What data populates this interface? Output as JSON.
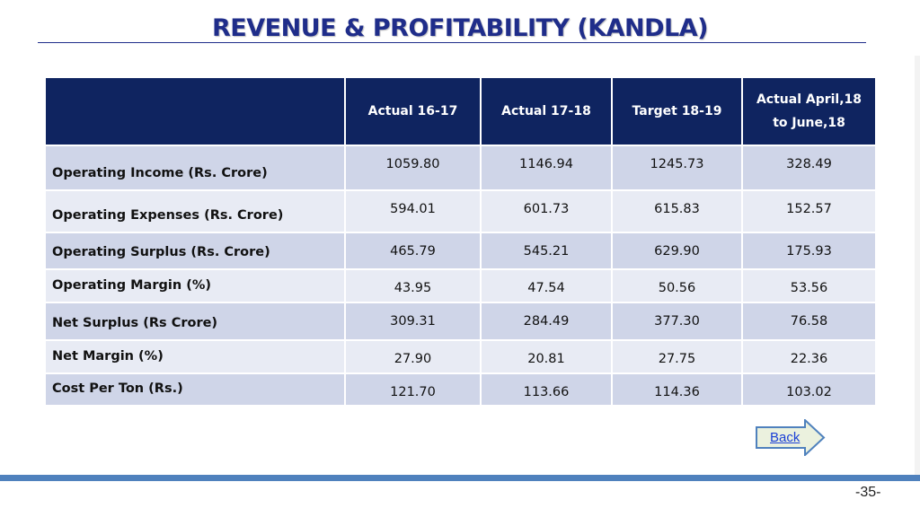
{
  "slide": {
    "title": "REVENUE & PROFITABILITY (KANDLA)",
    "page_number": "-35-",
    "back_label": "Back"
  },
  "table": {
    "corner": "",
    "headers": [
      "Actual 16-17",
      "Actual 17-18",
      "Target 18-19",
      "Actual April,18 to June,18"
    ],
    "rows": [
      {
        "label": "Operating Income (Rs. Crore)",
        "values": [
          "1059.80",
          "1146.94",
          "1245.73",
          "328.49"
        ]
      },
      {
        "label": "Operating Expenses (Rs. Crore)",
        "values": [
          "594.01",
          "601.73",
          "615.83",
          "152.57"
        ]
      },
      {
        "label": "Operating Surplus  (Rs. Crore)",
        "values": [
          "465.79",
          "545.21",
          "629.90",
          "175.93"
        ]
      },
      {
        "label": "Operating Margin (%)",
        "values": [
          "43.95",
          "47.54",
          "50.56",
          "53.56"
        ]
      },
      {
        "label": "Net Surplus (Rs Crore)",
        "values": [
          "309.31",
          "284.49",
          "377.30",
          "76.58"
        ]
      },
      {
        "label": "Net Margin   (%)",
        "values": [
          "27.90",
          "20.81",
          "27.75",
          "22.36"
        ]
      },
      {
        "label": "Cost Per Ton (Rs.)",
        "values": [
          "121.70",
          "113.66",
          "114.36",
          "103.02"
        ]
      }
    ]
  },
  "colors": {
    "title": "#1f2d8a",
    "header_bg": "#0f2460",
    "row_odd": "#cfd5e8",
    "row_even": "#e8ebf4",
    "accent_bar": "#4f81bd",
    "back_button_fill": "#ebf1de",
    "back_button_border": "#4f81bd"
  }
}
